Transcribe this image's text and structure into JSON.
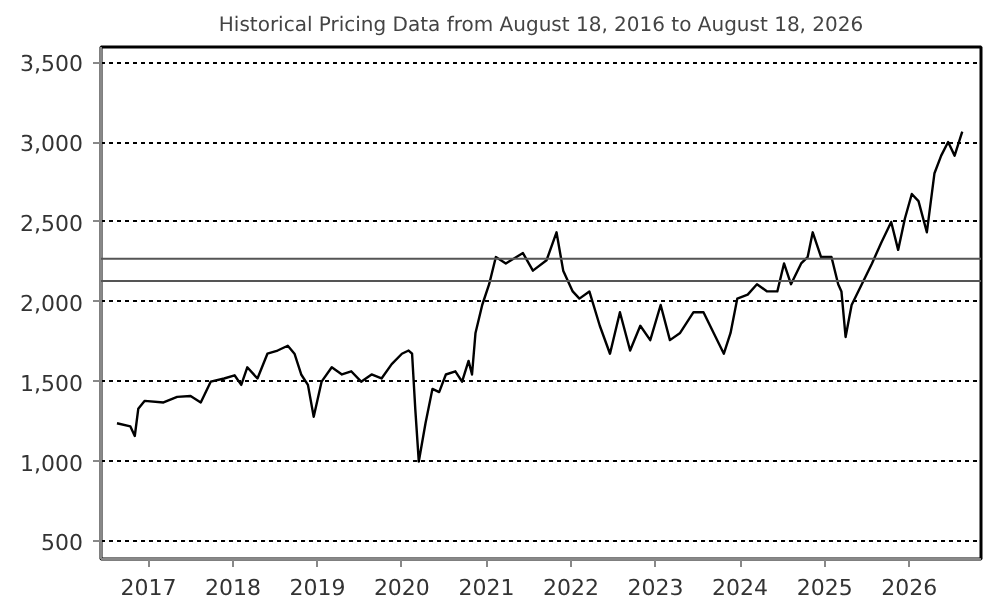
{
  "chart_data": {
    "type": "line",
    "title": "Historical Pricing Data from August 18, 2016 to August 18, 2026",
    "x": [
      "2016-08-18",
      "2016-10-15",
      "2016-11-03",
      "2016-11-18",
      "2016-12-16",
      "2017-03-07",
      "2017-05-05",
      "2017-07-02",
      "2017-08-15",
      "2017-09-27",
      "2017-11-24",
      "2018-01-08",
      "2018-02-06",
      "2018-03-04",
      "2018-04-17",
      "2018-05-30",
      "2018-07-13",
      "2018-08-26",
      "2018-09-24",
      "2018-10-23",
      "2018-11-21",
      "2018-12-16",
      "2019-01-19",
      "2019-03-04",
      "2019-04-17",
      "2019-05-27",
      "2019-07-09",
      "2019-08-23",
      "2019-10-05",
      "2019-11-18",
      "2020-01-01",
      "2020-01-30",
      "2020-02-14",
      "2020-02-28",
      "2020-03-14",
      "2020-04-12",
      "2020-05-12",
      "2020-06-10",
      "2020-07-09",
      "2020-08-19",
      "2020-09-17",
      "2020-10-15",
      "2020-10-30",
      "2020-11-14",
      "2020-12-13",
      "2021-01-12",
      "2021-02-10",
      "2021-03-25",
      "2021-06-07",
      "2021-07-20",
      "2021-09-17",
      "2021-10-30",
      "2021-11-28",
      "2022-01-08",
      "2022-02-06",
      "2022-03-21",
      "2022-05-05",
      "2022-06-18",
      "2022-07-31",
      "2022-09-13",
      "2022-10-27",
      "2022-12-09",
      "2023-01-23",
      "2023-03-04",
      "2023-04-17",
      "2023-06-14",
      "2023-07-27",
      "2023-09-09",
      "2023-10-23",
      "2023-11-21",
      "2023-12-20",
      "2024-02-03",
      "2024-03-14",
      "2024-04-27",
      "2024-06-10",
      "2024-07-09",
      "2024-08-08",
      "2024-09-21",
      "2024-10-19",
      "2024-11-10",
      "2024-12-16",
      "2025-01-30",
      "2025-02-28",
      "2025-03-14",
      "2025-04-01",
      "2025-04-27",
      "2025-06-10",
      "2025-07-24",
      "2025-09-02",
      "2025-10-15",
      "2025-11-14",
      "2025-12-13",
      "2026-01-12",
      "2026-02-10",
      "2026-03-18",
      "2026-04-20",
      "2026-05-19",
      "2026-06-18",
      "2026-07-16",
      "2026-08-18"
    ],
    "series": [
      {
        "color": "#000000",
        "values": [
          1240,
          1220,
          1160,
          1330,
          1380,
          1370,
          1405,
          1410,
          1370,
          1500,
          1520,
          1540,
          1480,
          1590,
          1520,
          1675,
          1695,
          1725,
          1675,
          1545,
          1480,
          1280,
          1500,
          1590,
          1545,
          1565,
          1500,
          1545,
          1520,
          1610,
          1675,
          1695,
          1675,
          1325,
          1000,
          1240,
          1455,
          1435,
          1545,
          1565,
          1500,
          1630,
          1545,
          1805,
          1980,
          2110,
          2280,
          2240,
          2305,
          2195,
          2260,
          2435,
          2195,
          2065,
          2020,
          2065,
          1850,
          1675,
          1935,
          1695,
          1850,
          1760,
          1980,
          1760,
          1805,
          1935,
          1935,
          1805,
          1675,
          1805,
          2020,
          2045,
          2110,
          2065,
          2065,
          2240,
          2110,
          2240,
          2280,
          2435,
          2280,
          2280,
          2110,
          2065,
          1780,
          1980,
          2110,
          2240,
          2370,
          2500,
          2325,
          2520,
          2675,
          2630,
          2435,
          2805,
          2915,
          3000,
          2915,
          3065
        ]
      }
    ],
    "xlim": [
      "2016-06-10",
      "2026-11-07"
    ],
    "xticks": [
      {
        "value": "2017-01-01",
        "label": "2017"
      },
      {
        "value": "2018-01-01",
        "label": "2018"
      },
      {
        "value": "2019-01-01",
        "label": "2019"
      },
      {
        "value": "2020-01-01",
        "label": "2020"
      },
      {
        "value": "2021-01-01",
        "label": "2021"
      },
      {
        "value": "2022-01-01",
        "label": "2022"
      },
      {
        "value": "2023-01-01",
        "label": "2023"
      },
      {
        "value": "2024-01-01",
        "label": "2024"
      },
      {
        "value": "2025-01-01",
        "label": "2025"
      },
      {
        "value": "2026-01-01",
        "label": "2026"
      }
    ],
    "ylim": [
      390,
      3595
    ],
    "yticks": [
      500,
      {
        "value": 1000,
        "label": "1,000"
      },
      {
        "value": 1500,
        "label": "1,500"
      },
      {
        "value": 2000,
        "label": "2,000"
      },
      {
        "value": 2500,
        "label": "2,500"
      },
      {
        "value": 3000,
        "label": "3,000"
      },
      {
        "value": 3500,
        "label": "3,500"
      }
    ],
    "grid": "y",
    "ref_lines": [
      {
        "axis": "y",
        "value": 2270,
        "color": "#555555"
      },
      {
        "axis": "y",
        "value": 2130,
        "color": "#555555"
      }
    ]
  }
}
